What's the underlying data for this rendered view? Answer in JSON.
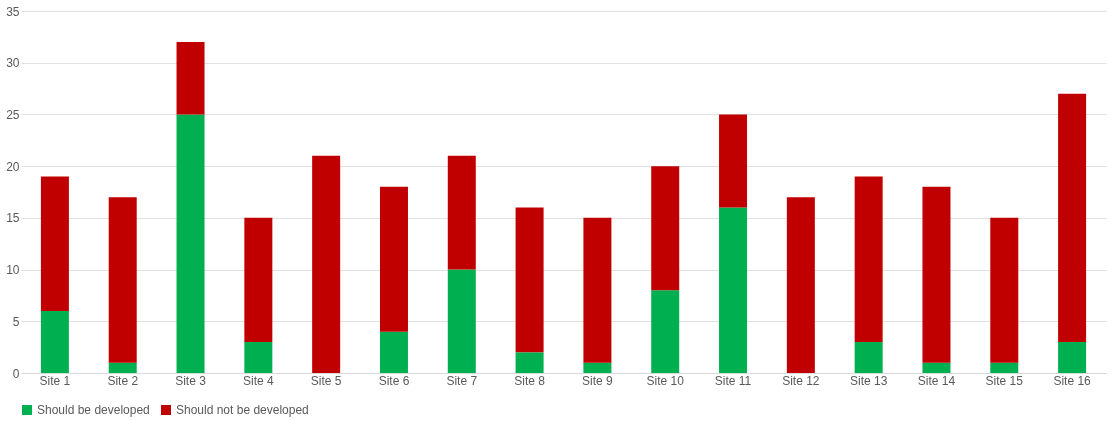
{
  "chart_data": {
    "type": "bar",
    "stacked": true,
    "categories": [
      "Site 1",
      "Site 2",
      "Site 3",
      "Site 4",
      "Site 5",
      "Site 6",
      "Site 7",
      "Site 8",
      "Site 9",
      "Site 10",
      "Site 11",
      "Site 12",
      "Site 13",
      "Site 14",
      "Site 15",
      "Site 16"
    ],
    "series": [
      {
        "name": "Should be developed",
        "color": "#00b050",
        "values": [
          6,
          1,
          25,
          3,
          0,
          4,
          10,
          2,
          1,
          8,
          16,
          0,
          3,
          1,
          1,
          3
        ]
      },
      {
        "name": "Should not be developed",
        "color": "#c00000",
        "values": [
          13,
          16,
          7,
          12,
          21,
          14,
          11,
          14,
          14,
          12,
          9,
          17,
          16,
          17,
          14,
          24
        ]
      }
    ],
    "ylim": [
      0,
      35
    ],
    "yticks": [
      0,
      5,
      10,
      15,
      20,
      25,
      30,
      35
    ],
    "grid": "y",
    "legend": "bottom"
  }
}
